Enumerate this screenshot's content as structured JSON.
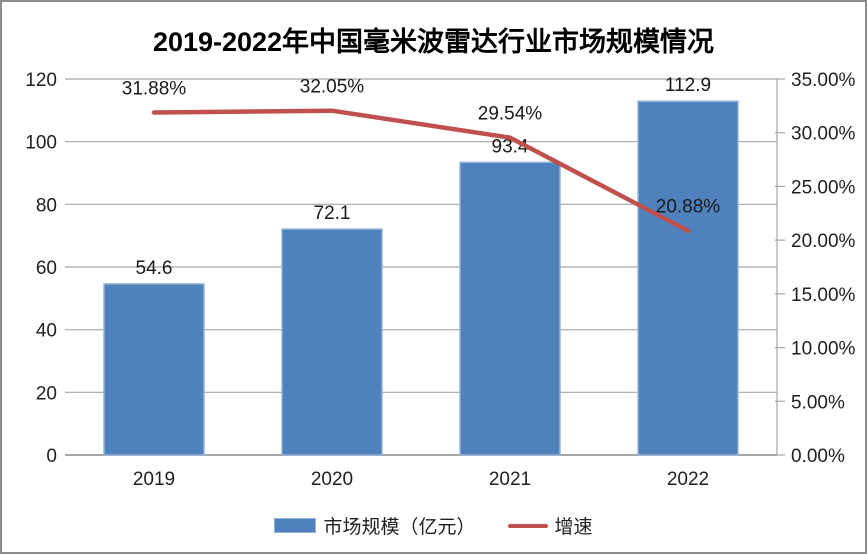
{
  "chart_data": {
    "type": "combo",
    "title": "2019-2022年中国毫米波雷达行业市场规模情况",
    "categories": [
      "2019",
      "2020",
      "2021",
      "2022"
    ],
    "series": [
      {
        "name": "市场规模（亿元）",
        "type": "bar",
        "axis": "left",
        "values": [
          54.6,
          72.1,
          93.4,
          112.9
        ],
        "labels": [
          "54.6",
          "72.1",
          "93.4",
          "112.9"
        ],
        "color": "#4f81bd",
        "border_color": "#95b3d7"
      },
      {
        "name": "增速",
        "type": "line",
        "axis": "right",
        "values": [
          31.88,
          32.05,
          29.54,
          20.88
        ],
        "labels": [
          "31.88%",
          "32.05%",
          "29.54%",
          "20.88%"
        ],
        "color": "#c0504d"
      }
    ],
    "left_axis": {
      "min": 0,
      "max": 120,
      "step": 20,
      "ticks": [
        "0",
        "20",
        "40",
        "60",
        "80",
        "100",
        "120"
      ]
    },
    "right_axis": {
      "min": 0,
      "max": 35,
      "step": 5,
      "ticks": [
        "0.00%",
        "5.00%",
        "10.00%",
        "15.00%",
        "20.00%",
        "25.00%",
        "30.00%",
        "35.00%"
      ]
    },
    "grid": true,
    "legend_position": "bottom",
    "style": {
      "grid_color": "#a6a6a6",
      "axis_text_color": "#1f1f1f",
      "label_text_color": "#1a1a1a",
      "background": "#ffffff",
      "window_border_color": "#8c8c8c"
    }
  }
}
